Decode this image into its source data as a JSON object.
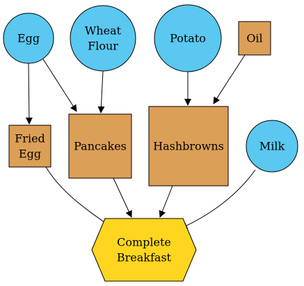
{
  "colors": {
    "ingredient": "#5ac8f0",
    "intermediate": "#dc9f57",
    "final": "#fed61f",
    "stroke": "#000000"
  },
  "nodes": {
    "egg": {
      "lines": [
        "Egg"
      ],
      "kind": "ingredient",
      "shape": "circle"
    },
    "wheat_flour": {
      "lines": [
        "Wheat",
        "Flour"
      ],
      "kind": "ingredient",
      "shape": "circle"
    },
    "potato": {
      "lines": [
        "Potato"
      ],
      "kind": "ingredient",
      "shape": "circle"
    },
    "oil": {
      "lines": [
        "Oil"
      ],
      "kind": "intermediate",
      "shape": "box"
    },
    "fried_egg": {
      "lines": [
        "Fried",
        "Egg"
      ],
      "kind": "intermediate",
      "shape": "box"
    },
    "pancakes": {
      "lines": [
        "Pancakes"
      ],
      "kind": "intermediate",
      "shape": "box"
    },
    "hashbrowns": {
      "lines": [
        "Hashbrowns"
      ],
      "kind": "intermediate",
      "shape": "box"
    },
    "milk": {
      "lines": [
        "Milk"
      ],
      "kind": "ingredient",
      "shape": "circle"
    },
    "complete_breakfast": {
      "lines": [
        "Complete",
        "Breakfast"
      ],
      "kind": "final",
      "shape": "hexagon"
    }
  },
  "edges": [
    {
      "from": "egg",
      "to": "fried_egg"
    },
    {
      "from": "egg",
      "to": "pancakes"
    },
    {
      "from": "wheat_flour",
      "to": "pancakes"
    },
    {
      "from": "potato",
      "to": "hashbrowns"
    },
    {
      "from": "oil",
      "to": "hashbrowns"
    },
    {
      "from": "fried_egg",
      "to": "complete_breakfast"
    },
    {
      "from": "pancakes",
      "to": "complete_breakfast"
    },
    {
      "from": "hashbrowns",
      "to": "complete_breakfast"
    },
    {
      "from": "milk",
      "to": "complete_breakfast"
    }
  ]
}
